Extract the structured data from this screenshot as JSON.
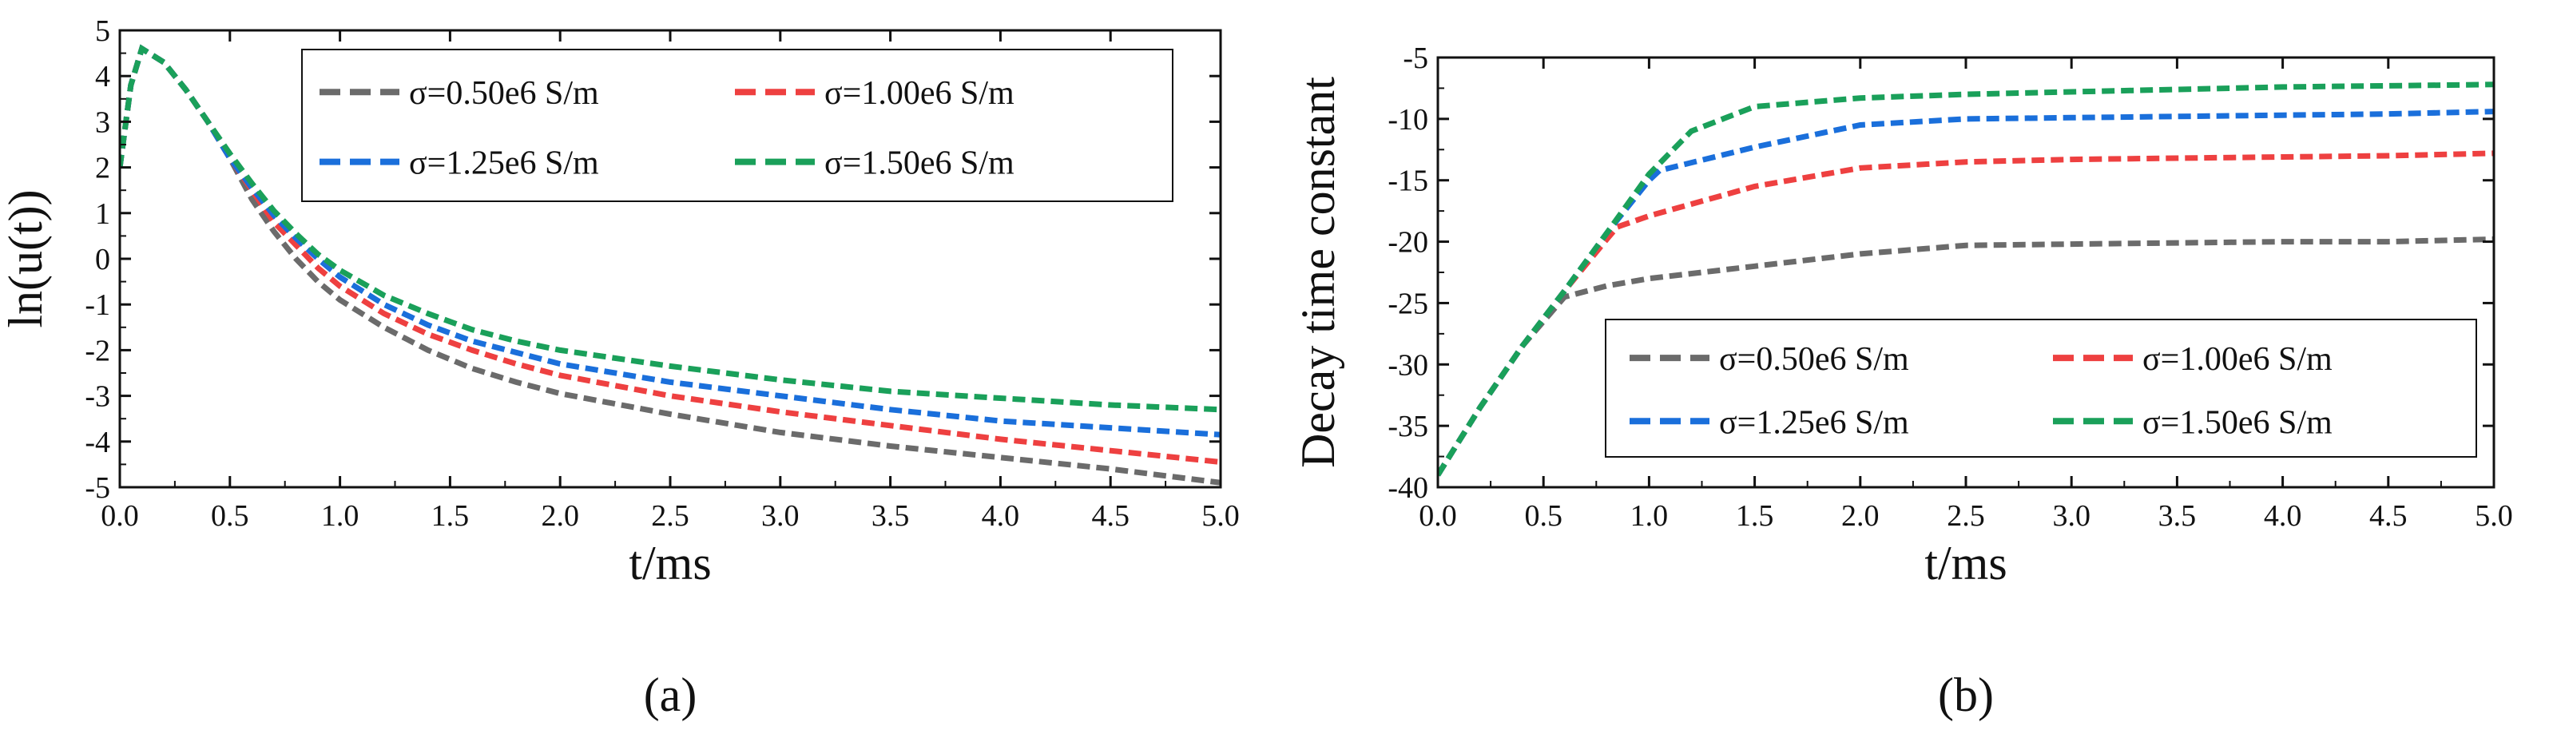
{
  "chart_data": [
    {
      "type": "line",
      "panel_caption": "(a)",
      "xlabel": "t/ms",
      "ylabel": "ln(u(t))",
      "xlim": [
        0,
        5
      ],
      "ylim": [
        -5,
        5
      ],
      "xticks": [
        "0.0",
        "0.5",
        "1.0",
        "1.5",
        "2.0",
        "2.5",
        "3.0",
        "3.5",
        "4.0",
        "4.5",
        "5.0"
      ],
      "yticks": [
        "-5",
        "-4",
        "-3",
        "-2",
        "-1",
        "0",
        "1",
        "2",
        "3",
        "4",
        "5"
      ],
      "legend_position": "top-right",
      "series": [
        {
          "name": "σ=0.50e6 S/m",
          "color": "#6b6b6b",
          "x": [
            0,
            0.05,
            0.1,
            0.2,
            0.3,
            0.4,
            0.5,
            0.6,
            0.7,
            0.8,
            0.9,
            1.0,
            1.2,
            1.4,
            1.6,
            1.8,
            2.0,
            2.5,
            3.0,
            3.5,
            4.0,
            4.5,
            5.0
          ],
          "y": [
            2.0,
            3.8,
            4.6,
            4.3,
            3.7,
            3.0,
            2.2,
            1.3,
            0.6,
            0.0,
            -0.5,
            -0.9,
            -1.5,
            -2.0,
            -2.4,
            -2.7,
            -2.95,
            -3.4,
            -3.8,
            -4.1,
            -4.35,
            -4.6,
            -4.9
          ]
        },
        {
          "name": "σ=1.00e6 S/m",
          "color": "#ee4040",
          "x": [
            0,
            0.05,
            0.1,
            0.2,
            0.3,
            0.4,
            0.5,
            0.6,
            0.7,
            0.8,
            0.9,
            1.0,
            1.2,
            1.4,
            1.6,
            1.8,
            2.0,
            2.5,
            3.0,
            3.5,
            4.0,
            4.5,
            5.0
          ],
          "y": [
            2.0,
            3.8,
            4.6,
            4.3,
            3.7,
            3.0,
            2.2,
            1.5,
            0.8,
            0.3,
            -0.2,
            -0.6,
            -1.2,
            -1.65,
            -2.0,
            -2.3,
            -2.55,
            -3.0,
            -3.35,
            -3.65,
            -3.95,
            -4.2,
            -4.45
          ]
        },
        {
          "name": "σ=1.25e6 S/m",
          "color": "#1a6fdb",
          "x": [
            0,
            0.05,
            0.1,
            0.2,
            0.3,
            0.4,
            0.5,
            0.6,
            0.7,
            0.8,
            0.9,
            1.0,
            1.2,
            1.4,
            1.6,
            1.8,
            2.0,
            2.5,
            3.0,
            3.5,
            4.0,
            4.5,
            5.0
          ],
          "y": [
            2.0,
            3.8,
            4.6,
            4.3,
            3.7,
            3.0,
            2.2,
            1.55,
            0.95,
            0.45,
            0.0,
            -0.4,
            -1.0,
            -1.45,
            -1.8,
            -2.05,
            -2.3,
            -2.7,
            -3.0,
            -3.3,
            -3.55,
            -3.7,
            -3.85
          ]
        },
        {
          "name": "σ=1.50e6 S/m",
          "color": "#1aa05a",
          "x": [
            0,
            0.05,
            0.1,
            0.2,
            0.3,
            0.4,
            0.5,
            0.6,
            0.7,
            0.8,
            0.9,
            1.0,
            1.2,
            1.4,
            1.6,
            1.8,
            2.0,
            2.5,
            3.0,
            3.5,
            4.0,
            4.5,
            5.0
          ],
          "y": [
            2.0,
            3.8,
            4.6,
            4.3,
            3.7,
            3.0,
            2.3,
            1.65,
            1.05,
            0.55,
            0.1,
            -0.25,
            -0.8,
            -1.2,
            -1.55,
            -1.8,
            -2.0,
            -2.35,
            -2.65,
            -2.9,
            -3.05,
            -3.2,
            -3.3
          ]
        }
      ]
    },
    {
      "type": "line",
      "panel_caption": "(b)",
      "xlabel": "t/ms",
      "ylabel": "Decay time constant",
      "xlim": [
        0,
        5
      ],
      "ylim": [
        -40,
        -5
      ],
      "xticks": [
        "0.0",
        "0.5",
        "1.0",
        "1.5",
        "2.0",
        "2.5",
        "3.0",
        "3.5",
        "4.0",
        "4.5",
        "5.0"
      ],
      "yticks": [
        "-40",
        "-35",
        "-30",
        "-25",
        "-20",
        "-15",
        "-10",
        "-5"
      ],
      "legend_position": "bottom-right",
      "series": [
        {
          "name": "σ=0.50e6 S/m",
          "color": "#6b6b6b",
          "x": [
            0,
            0.2,
            0.4,
            0.6,
            0.8,
            1.0,
            1.5,
            2.0,
            2.5,
            3.0,
            3.5,
            4.0,
            4.5,
            5.0
          ],
          "y": [
            -39,
            -33.5,
            -28.5,
            -24.5,
            -23.6,
            -23.0,
            -22.0,
            -21.0,
            -20.3,
            -20.2,
            -20.1,
            -20.0,
            -20.0,
            -19.8
          ]
        },
        {
          "name": "σ=1.00e6 S/m",
          "color": "#ee4040",
          "x": [
            0,
            0.2,
            0.4,
            0.6,
            0.8,
            0.85,
            1.0,
            1.5,
            2.0,
            2.5,
            3.0,
            3.5,
            4.0,
            4.5,
            5.0
          ],
          "y": [
            -39,
            -33.5,
            -28.5,
            -24.0,
            -19.8,
            -18.8,
            -17.9,
            -15.5,
            -14.0,
            -13.5,
            -13.3,
            -13.2,
            -13.1,
            -13.0,
            -12.8
          ]
        },
        {
          "name": "σ=1.25e6 S/m",
          "color": "#1a6fdb",
          "x": [
            0,
            0.2,
            0.4,
            0.6,
            0.8,
            1.0,
            1.05,
            1.5,
            2.0,
            2.5,
            3.0,
            3.5,
            4.0,
            4.5,
            5.0
          ],
          "y": [
            -39,
            -33.5,
            -28.5,
            -24.0,
            -19.3,
            -15.0,
            -14.2,
            -12.3,
            -10.5,
            -10.0,
            -9.9,
            -9.8,
            -9.7,
            -9.6,
            -9.4
          ]
        },
        {
          "name": "σ=1.50e6 S/m",
          "color": "#1aa05a",
          "x": [
            0,
            0.2,
            0.4,
            0.6,
            0.8,
            1.0,
            1.2,
            1.5,
            2.0,
            2.5,
            3.0,
            3.5,
            4.0,
            4.5,
            5.0
          ],
          "y": [
            -39,
            -33.5,
            -28.5,
            -24.0,
            -19.3,
            -14.5,
            -11.0,
            -9.0,
            -8.3,
            -8.0,
            -7.8,
            -7.6,
            -7.4,
            -7.3,
            -7.2
          ]
        }
      ]
    }
  ]
}
